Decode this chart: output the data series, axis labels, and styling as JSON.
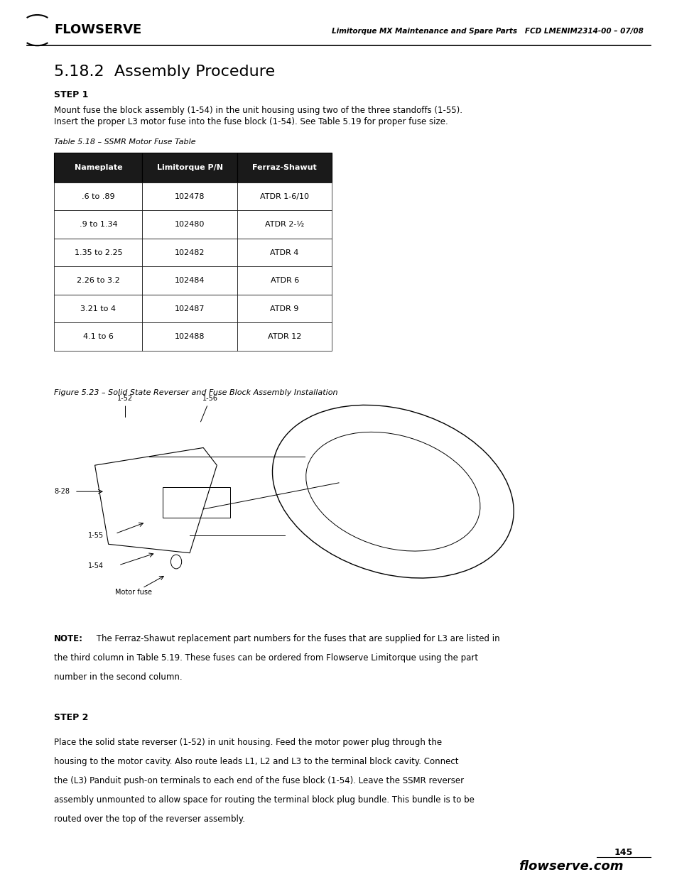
{
  "page_width": 9.54,
  "page_height": 12.35,
  "bg_color": "#ffffff",
  "header_left": "FLOWSERVE",
  "header_right_italic": "Limitorque MX Maintenance and Spare Parts   FCD LMENIM2314-00 – 07/08",
  "section_title": "5.18.2  Assembly Procedure",
  "step1_label": "STEP 1",
  "step1_text_line1": "Mount fuse the block assembly (1-54) in the unit housing using two of the three standoffs (1-55).",
  "step1_text_line2": "Insert the proper L3 motor fuse into the fuse block (1-54). See Table 5.19 for proper fuse size.",
  "table_caption": "Table 5.18 – SSMR Motor Fuse Table",
  "table_headers": [
    "Nameplate",
    "Limitorque P/N",
    "Ferraz-Shawut"
  ],
  "table_rows": [
    [
      ".6 to .89",
      "102478",
      "ATDR 1-6/10"
    ],
    [
      ".9 to 1.34",
      "102480",
      "ATDR 2-½"
    ],
    [
      "1.35 to 2.25",
      "102482",
      "ATDR 4"
    ],
    [
      "2.26 to 3.2",
      "102484",
      "ATDR 6"
    ],
    [
      "3.21 to 4",
      "102487",
      "ATDR 9"
    ],
    [
      "4.1 to 6",
      "102488",
      "ATDR 12"
    ]
  ],
  "table_header_bg": "#1a1a1a",
  "table_header_fg": "#ffffff",
  "table_row_bg": "#ffffff",
  "table_border_color": "#000000",
  "figure_caption": "Figure 5.23 – Solid State Reverser and Fuse Block Assembly Installation",
  "note_bold": "NOTE:",
  "note_text": " The Ferraz-Shawut replacement part numbers for the fuses that are supplied for L3 are listed in\nthe third column in Table 5.19. These fuses can be ordered from Flowserve Limitorque using the part\nnumber in the second column.",
  "step2_label": "STEP 2",
  "step2_text": "Place the solid state reverser (1-52) in unit housing. Feed the motor power plug through the\nhousing to the motor cavity. Also route leads L1, L2 and L3 to the terminal block cavity. Connect\nthe (L3) Panduit push-on terminals to each end of the fuse block (1-54). Leave the SSMR reverser\nassembly unmounted to allow space for routing the terminal block plug bundle. This bundle is to be\nrouted over the top of the reverser assembly.",
  "page_number": "145",
  "footer_text": "flowserve.com"
}
